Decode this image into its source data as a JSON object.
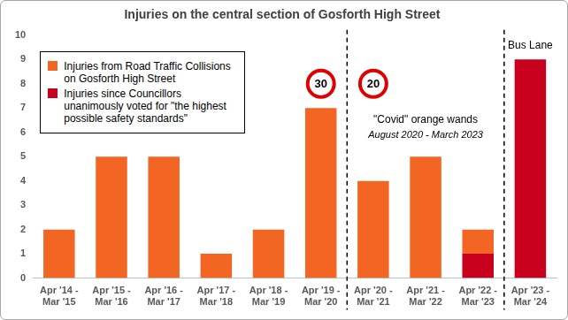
{
  "chart_data": {
    "type": "bar",
    "title": "Injuries on the central section of Gosforth High Street",
    "categories": [
      "Apr '14 - Mar '15",
      "Apr '15 - Mar '16",
      "Apr '16 - Mar '17",
      "Apr '17 - Mar '18",
      "Apr '18 - Mar '19",
      "Apr '19 - Mar '20",
      "Apr '20 - Mar '21",
      "Apr '21 - Mar '22",
      "Apr '22 - Mar '23",
      "Apr '23 - Mar '24"
    ],
    "series": [
      {
        "name": "Injuries from Road Traffic Collisions on Gosforth High Street",
        "color": "#f36523",
        "values": [
          2,
          5,
          5,
          1,
          2,
          7,
          4,
          5,
          1,
          null
        ]
      },
      {
        "name": "Injuries since Councillors unanimously voted for \"the highest possible safety standards\"",
        "color": "#c8001e",
        "values": [
          null,
          null,
          null,
          null,
          null,
          null,
          null,
          null,
          1,
          9
        ]
      }
    ],
    "stacked": true,
    "ylim": [
      0,
      10
    ],
    "yticks": [
      0,
      1,
      2,
      3,
      4,
      5,
      6,
      7,
      8,
      9,
      10
    ],
    "grid": false,
    "legend": "upper left",
    "speed_limits": [
      {
        "text": "30",
        "category": "Apr '19 - Mar '20"
      },
      {
        "text": "20",
        "category": "Apr '20 - Mar '21"
      }
    ],
    "dividers": [
      "Apr '20 - Mar '21",
      "Apr '23 - Mar '24"
    ],
    "period_note": {
      "title": "\"Covid\" orange wands",
      "subtitle": "August 2020 - March 2023",
      "category": "Apr '21 - Mar '22"
    },
    "annotations": [
      {
        "text": "Bus Lane",
        "category": "Apr '23 - Mar '24"
      }
    ]
  }
}
